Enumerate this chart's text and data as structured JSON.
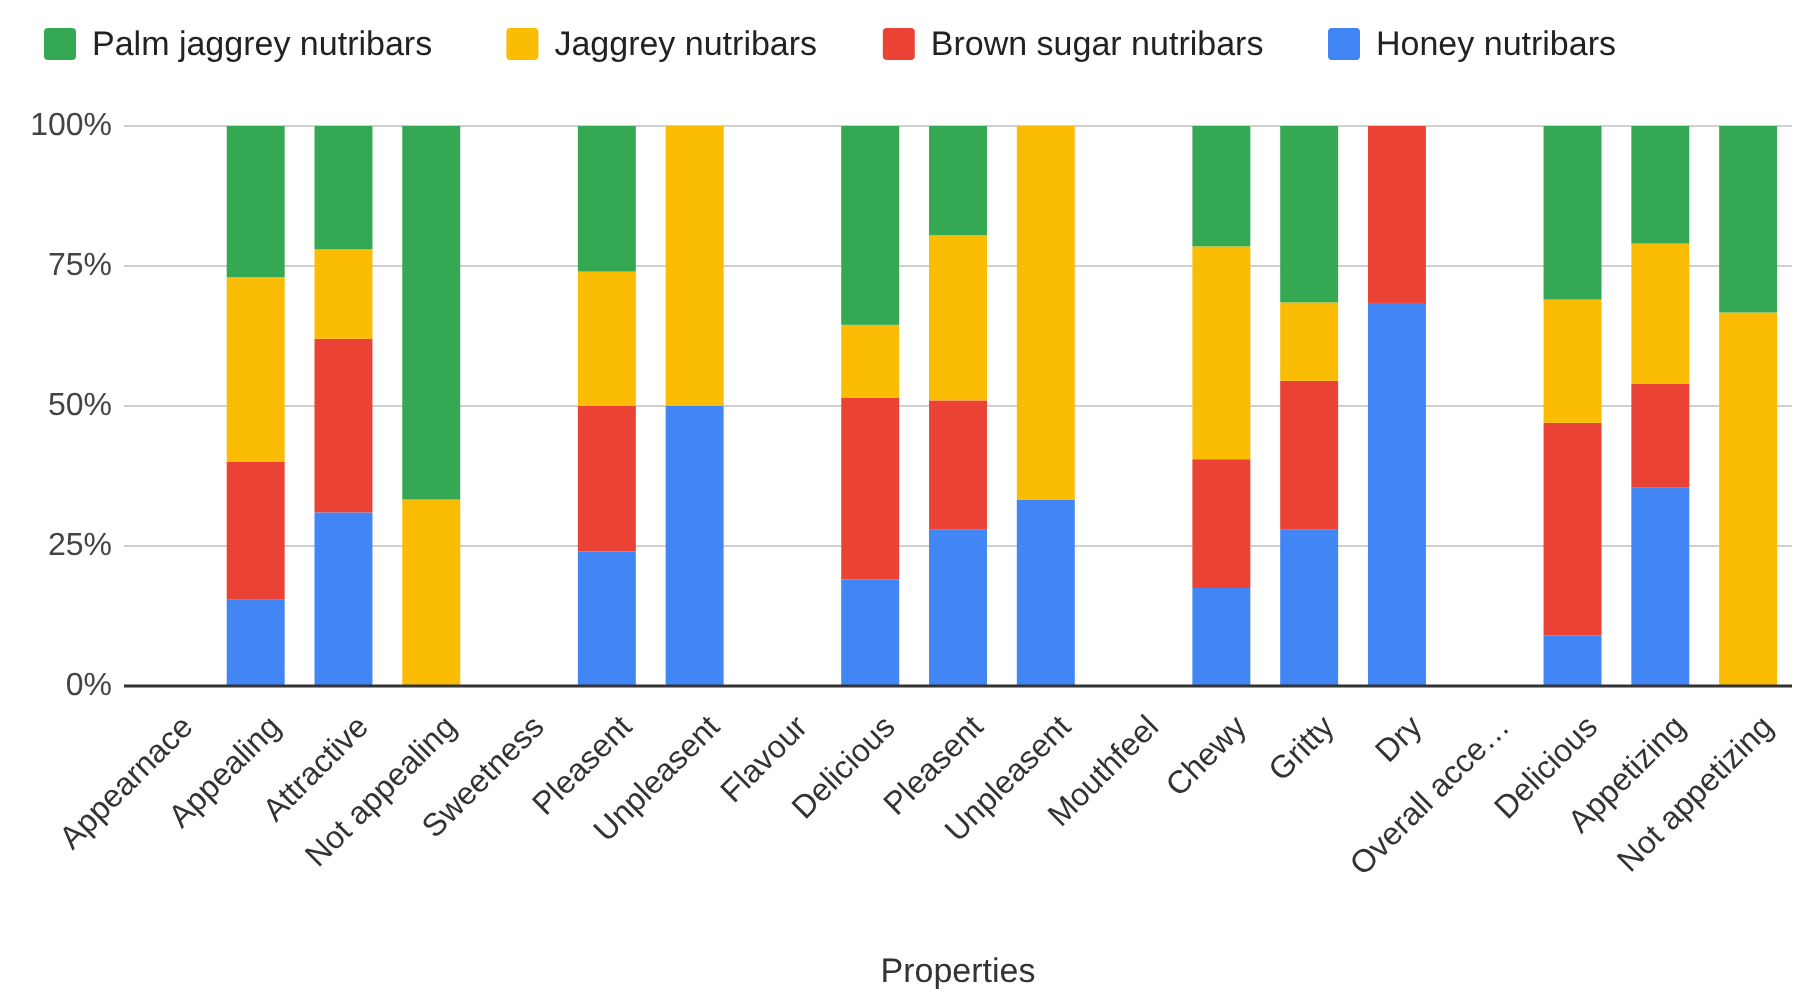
{
  "chart_data": {
    "type": "bar",
    "stacked": true,
    "xlabel": "Properties",
    "categories": [
      "Appearnace",
      "Appealing",
      "Attractive",
      "Not appealing",
      "Sweetness",
      "Pleasent",
      "Unpleasent",
      "Flavour",
      "Delicious",
      "Pleasent",
      "Unpleasent",
      "Mouthfeel",
      "Chewy",
      "Gritty",
      "Dry",
      "Overall acce…",
      "Delicious",
      "Appetizing",
      "Not appetizing"
    ],
    "series": [
      {
        "name": "Honey nutribars",
        "color": "#4285f4",
        "values": [
          null,
          15.4,
          31,
          0,
          null,
          24,
          50,
          null,
          19,
          28,
          33.3,
          null,
          17.5,
          28,
          68.4,
          null,
          9,
          35.5,
          0
        ]
      },
      {
        "name": "Brown sugar nutribars",
        "color": "#ea4335",
        "values": [
          null,
          24.6,
          31,
          0,
          null,
          26,
          0,
          null,
          32.5,
          23,
          0,
          null,
          23,
          26.5,
          31.6,
          null,
          38,
          18.5,
          0
        ]
      },
      {
        "name": "Jaggrey nutribars",
        "color": "#fbbc04",
        "values": [
          null,
          33,
          16,
          33.3,
          null,
          24,
          50,
          null,
          13,
          29.5,
          66.7,
          null,
          38,
          14,
          0,
          null,
          22,
          25,
          66.7
        ]
      },
      {
        "name": "Palm jaggrey nutribars",
        "color": "#34a853",
        "values": [
          null,
          27,
          22,
          66.7,
          null,
          26,
          0,
          null,
          35.5,
          19.5,
          0,
          null,
          21.5,
          31.5,
          0,
          null,
          31,
          21,
          33.3
        ]
      }
    ],
    "ylim": [
      0,
      100
    ],
    "yticks": [
      {
        "value": 0,
        "label": "0%"
      },
      {
        "value": 25,
        "label": "25%"
      },
      {
        "value": 50,
        "label": "50%"
      },
      {
        "value": 75,
        "label": "75%"
      },
      {
        "value": 100,
        "label": "100%"
      }
    ],
    "grid": "y",
    "legend": "top"
  }
}
